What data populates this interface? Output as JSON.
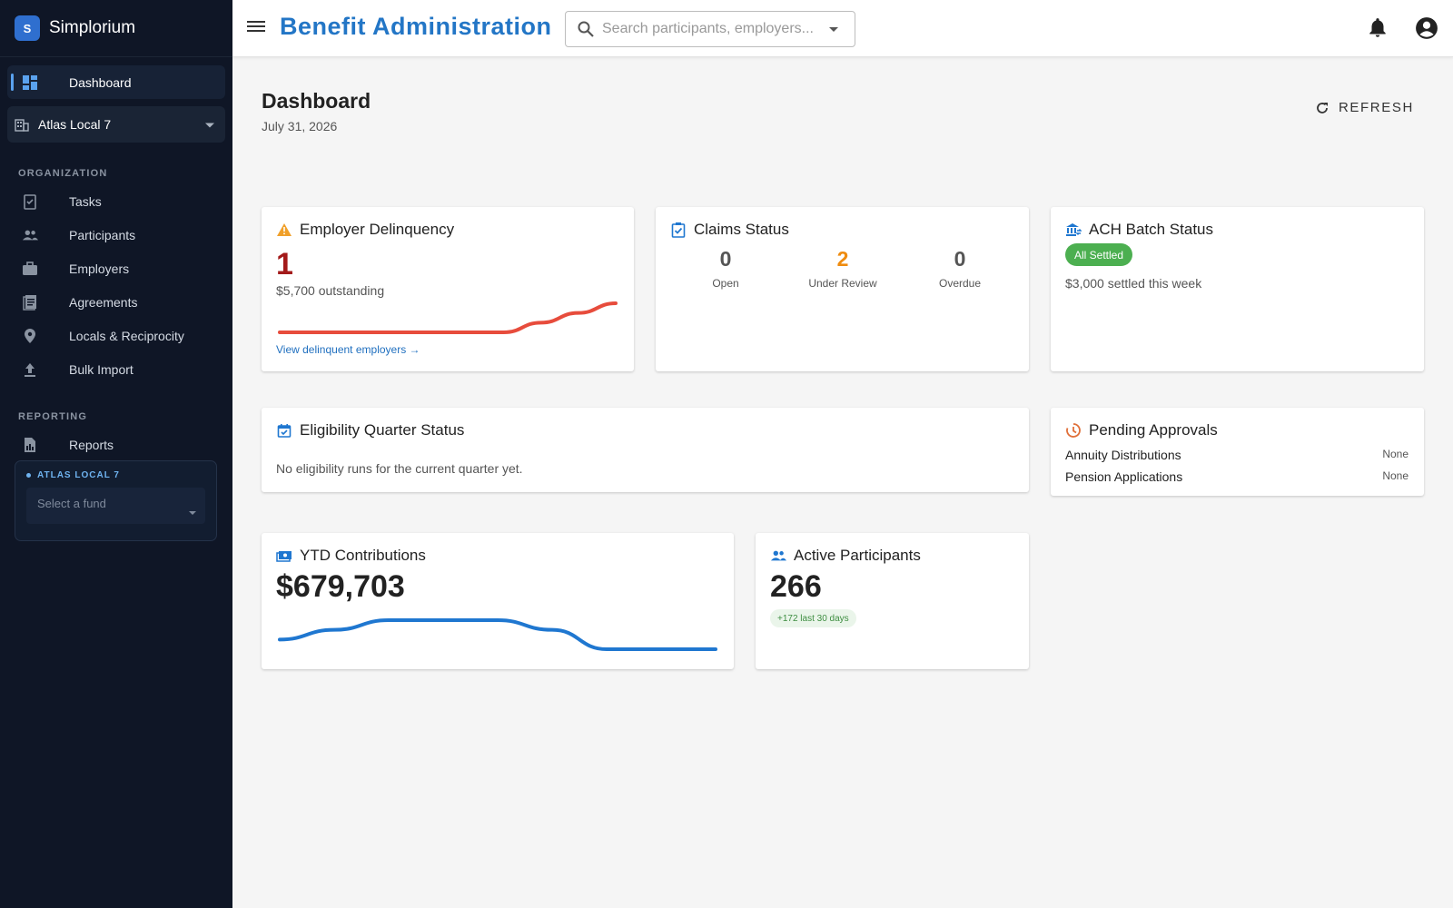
{
  "app": {
    "brand_letter": "S",
    "brand_name": "Simplorium",
    "title": "Benefit Administration"
  },
  "sidebar": {
    "dashboard": "Dashboard",
    "fund_selector": "Atlas Local 7",
    "sections": {
      "organization": "ORGANIZATION",
      "reporting": "REPORTING"
    },
    "organization_items": [
      {
        "label": "Tasks",
        "icon": "tasks-icon"
      },
      {
        "label": "Participants",
        "icon": "people-icon"
      },
      {
        "label": "Employers",
        "icon": "briefcase-icon"
      },
      {
        "label": "Agreements",
        "icon": "document-icon"
      },
      {
        "label": "Locals & Reciprocity",
        "icon": "location-pin-icon"
      },
      {
        "label": "Bulk Import",
        "icon": "upload-icon"
      }
    ],
    "reporting_items": [
      {
        "label": "Reports",
        "icon": "report-icon"
      }
    ],
    "fund_box": {
      "title": "ATLAS LOCAL 7",
      "placeholder": "Select a fund"
    }
  },
  "topbar": {
    "search_placeholder": "Search participants, employers..."
  },
  "header": {
    "title": "Dashboard",
    "date": "July 31, 2026",
    "refresh_label": "REFRESH"
  },
  "cards": {
    "delinquency": {
      "title": "Employer Delinquency",
      "count": "1",
      "outstanding": "$5,700 outstanding",
      "link": "View delinquent employers →",
      "trend": [
        0,
        0,
        0,
        0,
        0,
        0,
        0,
        1,
        2,
        3
      ],
      "color": "#e74c3c"
    },
    "claims": {
      "title": "Claims Status",
      "stats": [
        {
          "value": "0",
          "label": "Open"
        },
        {
          "value": "2",
          "label": "Under Review"
        },
        {
          "value": "0",
          "label": "Overdue"
        }
      ]
    },
    "ach": {
      "title": "ACH Batch Status",
      "badge": "All Settled",
      "summary": "$3,000 settled this week"
    },
    "eligibility": {
      "title": "Eligibility Quarter Status",
      "message": "No eligibility runs for the current quarter yet."
    },
    "approvals": {
      "title": "Pending Approvals",
      "rows": [
        {
          "label": "Annuity Distributions",
          "value": "None"
        },
        {
          "label": "Pension Applications",
          "value": "None"
        }
      ]
    },
    "ytd": {
      "title": "YTD Contributions",
      "value": "$679,703",
      "trend": [
        2,
        3,
        4,
        4,
        4,
        3,
        1,
        1,
        1
      ],
      "color": "#1f77d0"
    },
    "active": {
      "title": "Active Participants",
      "value": "266",
      "delta": "+172 last 30 days"
    }
  },
  "colors": {
    "sidebar_bg": "#0f1626",
    "accent": "#2376c6",
    "danger": "#a31a1a",
    "warning": "#ef8c10",
    "success": "#4caf50"
  }
}
